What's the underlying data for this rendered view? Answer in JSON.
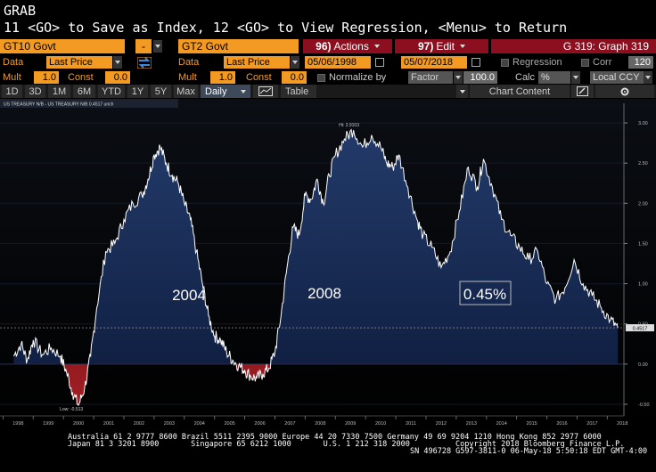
{
  "header": {
    "grab": "GRAB",
    "command": "11 <GO> to Save as Index, 12 <GO> to View Regression, <Menu> to Return"
  },
  "toolbar": {
    "security1": "GT10 Govt",
    "security1_dash": "-",
    "security2": "GT2 Govt",
    "actions_num": "96)",
    "actions_label": "Actions",
    "edit_num": "97)",
    "edit_label": "Edit",
    "graph_title": "G 319: Graph 319"
  },
  "row_data": {
    "data_label": "Data",
    "field1": "Last Price",
    "data2_label": "Data",
    "field2": "Last Price",
    "start_date": "05/06/1998",
    "end_date": "05/07/2018",
    "regression_label": "Regression",
    "corr_label": "Corr",
    "corr_value": "120"
  },
  "row_mult": {
    "mult1_label": "Mult",
    "mult1_value": "1.0",
    "const1_label": "Const",
    "const1_value": "0.0",
    "mult2_label": "Mult",
    "mult2_value": "1.0",
    "const2_label": "Const",
    "const2_value": "0.0",
    "normalize_label": "Normalize by",
    "factor_label": "Factor",
    "factor_value": "100.0",
    "calc_label": "Calc",
    "calc_value": "%",
    "currency_label": "Local CCY"
  },
  "tabs": {
    "d1": "1D",
    "d3": "3D",
    "m1": "1M",
    "m6": "6M",
    "ytd": "YTD",
    "y1": "1Y",
    "y5": "5Y",
    "max": "Max",
    "daily": "Daily",
    "table": "Table",
    "chart_content": "Chart Content"
  },
  "chart_data": {
    "type": "area",
    "legend": "US TREASURY N/B - US TREASURY N/B 0.4517 unch",
    "hi_label": "Hi: 2.9103",
    "low_label": "Low: -0.513",
    "last_value": "0.4517",
    "annotations": [
      "2004",
      "2008",
      "0.45%"
    ],
    "y_ticks": [
      "3.00",
      "2.50",
      "2.00",
      "1.50",
      "1.00",
      "0.50",
      "0.00",
      "-0.50"
    ],
    "ylim": [
      -0.6,
      3.1
    ],
    "x_ticks": [
      "1998",
      "1999",
      "2000",
      "2001",
      "2002",
      "2003",
      "2004",
      "2005",
      "2006",
      "2007",
      "2008",
      "2009",
      "2010",
      "2011",
      "2012",
      "2013",
      "2014",
      "2015",
      "2016",
      "2017",
      "2018"
    ],
    "x": [
      1998.35,
      1998.6,
      1998.8,
      1999.0,
      1999.3,
      1999.6,
      1999.9,
      2000.1,
      2000.3,
      2000.5,
      2000.7,
      2000.9,
      2001.1,
      2001.4,
      2001.7,
      2002.0,
      2002.3,
      2002.6,
      2002.8,
      2003.0,
      2003.2,
      2003.4,
      2003.6,
      2003.8,
      2004.0,
      2004.2,
      2004.4,
      2004.6,
      2004.8,
      2005.0,
      2005.2,
      2005.4,
      2005.6,
      2005.8,
      2006.0,
      2006.2,
      2006.4,
      2006.6,
      2006.8,
      2007.0,
      2007.2,
      2007.4,
      2007.6,
      2007.8,
      2008.0,
      2008.2,
      2008.4,
      2008.6,
      2008.8,
      2009.0,
      2009.3,
      2009.6,
      2009.9,
      2010.2,
      2010.5,
      2010.7,
      2010.9,
      2011.1,
      2011.4,
      2011.7,
      2011.9,
      2012.2,
      2012.5,
      2012.8,
      2013.1,
      2013.4,
      2013.7,
      2013.9,
      2014.2,
      2014.5,
      2014.8,
      2015.1,
      2015.4,
      2015.7,
      2016.0,
      2016.3,
      2016.6,
      2016.9,
      2017.2,
      2017.5,
      2017.8,
      2018.1,
      2018.35
    ],
    "values": [
      0.1,
      0.25,
      0.05,
      0.3,
      0.12,
      0.2,
      0.1,
      -0.1,
      -0.35,
      -0.513,
      -0.3,
      0.1,
      0.7,
      1.4,
      1.5,
      1.8,
      2.0,
      2.1,
      2.3,
      2.6,
      2.7,
      2.5,
      2.35,
      2.25,
      2.0,
      1.8,
      1.4,
      1.0,
      0.6,
      0.35,
      0.3,
      0.15,
      0.05,
      -0.02,
      -0.08,
      -0.15,
      -0.18,
      -0.12,
      -0.05,
      0.15,
      0.6,
      1.2,
      1.7,
      1.6,
      2.1,
      2.05,
      2.3,
      2.0,
      2.35,
      2.6,
      2.8,
      2.91,
      2.7,
      2.85,
      2.7,
      2.5,
      2.45,
      2.6,
      2.2,
      1.8,
      1.6,
      1.45,
      1.2,
      1.4,
      1.9,
      2.45,
      2.2,
      2.55,
      2.2,
      1.8,
      1.6,
      1.45,
      1.3,
      1.4,
      1.0,
      0.8,
      0.95,
      1.3,
      1.0,
      0.85,
      0.7,
      0.55,
      0.45
    ]
  }
}
